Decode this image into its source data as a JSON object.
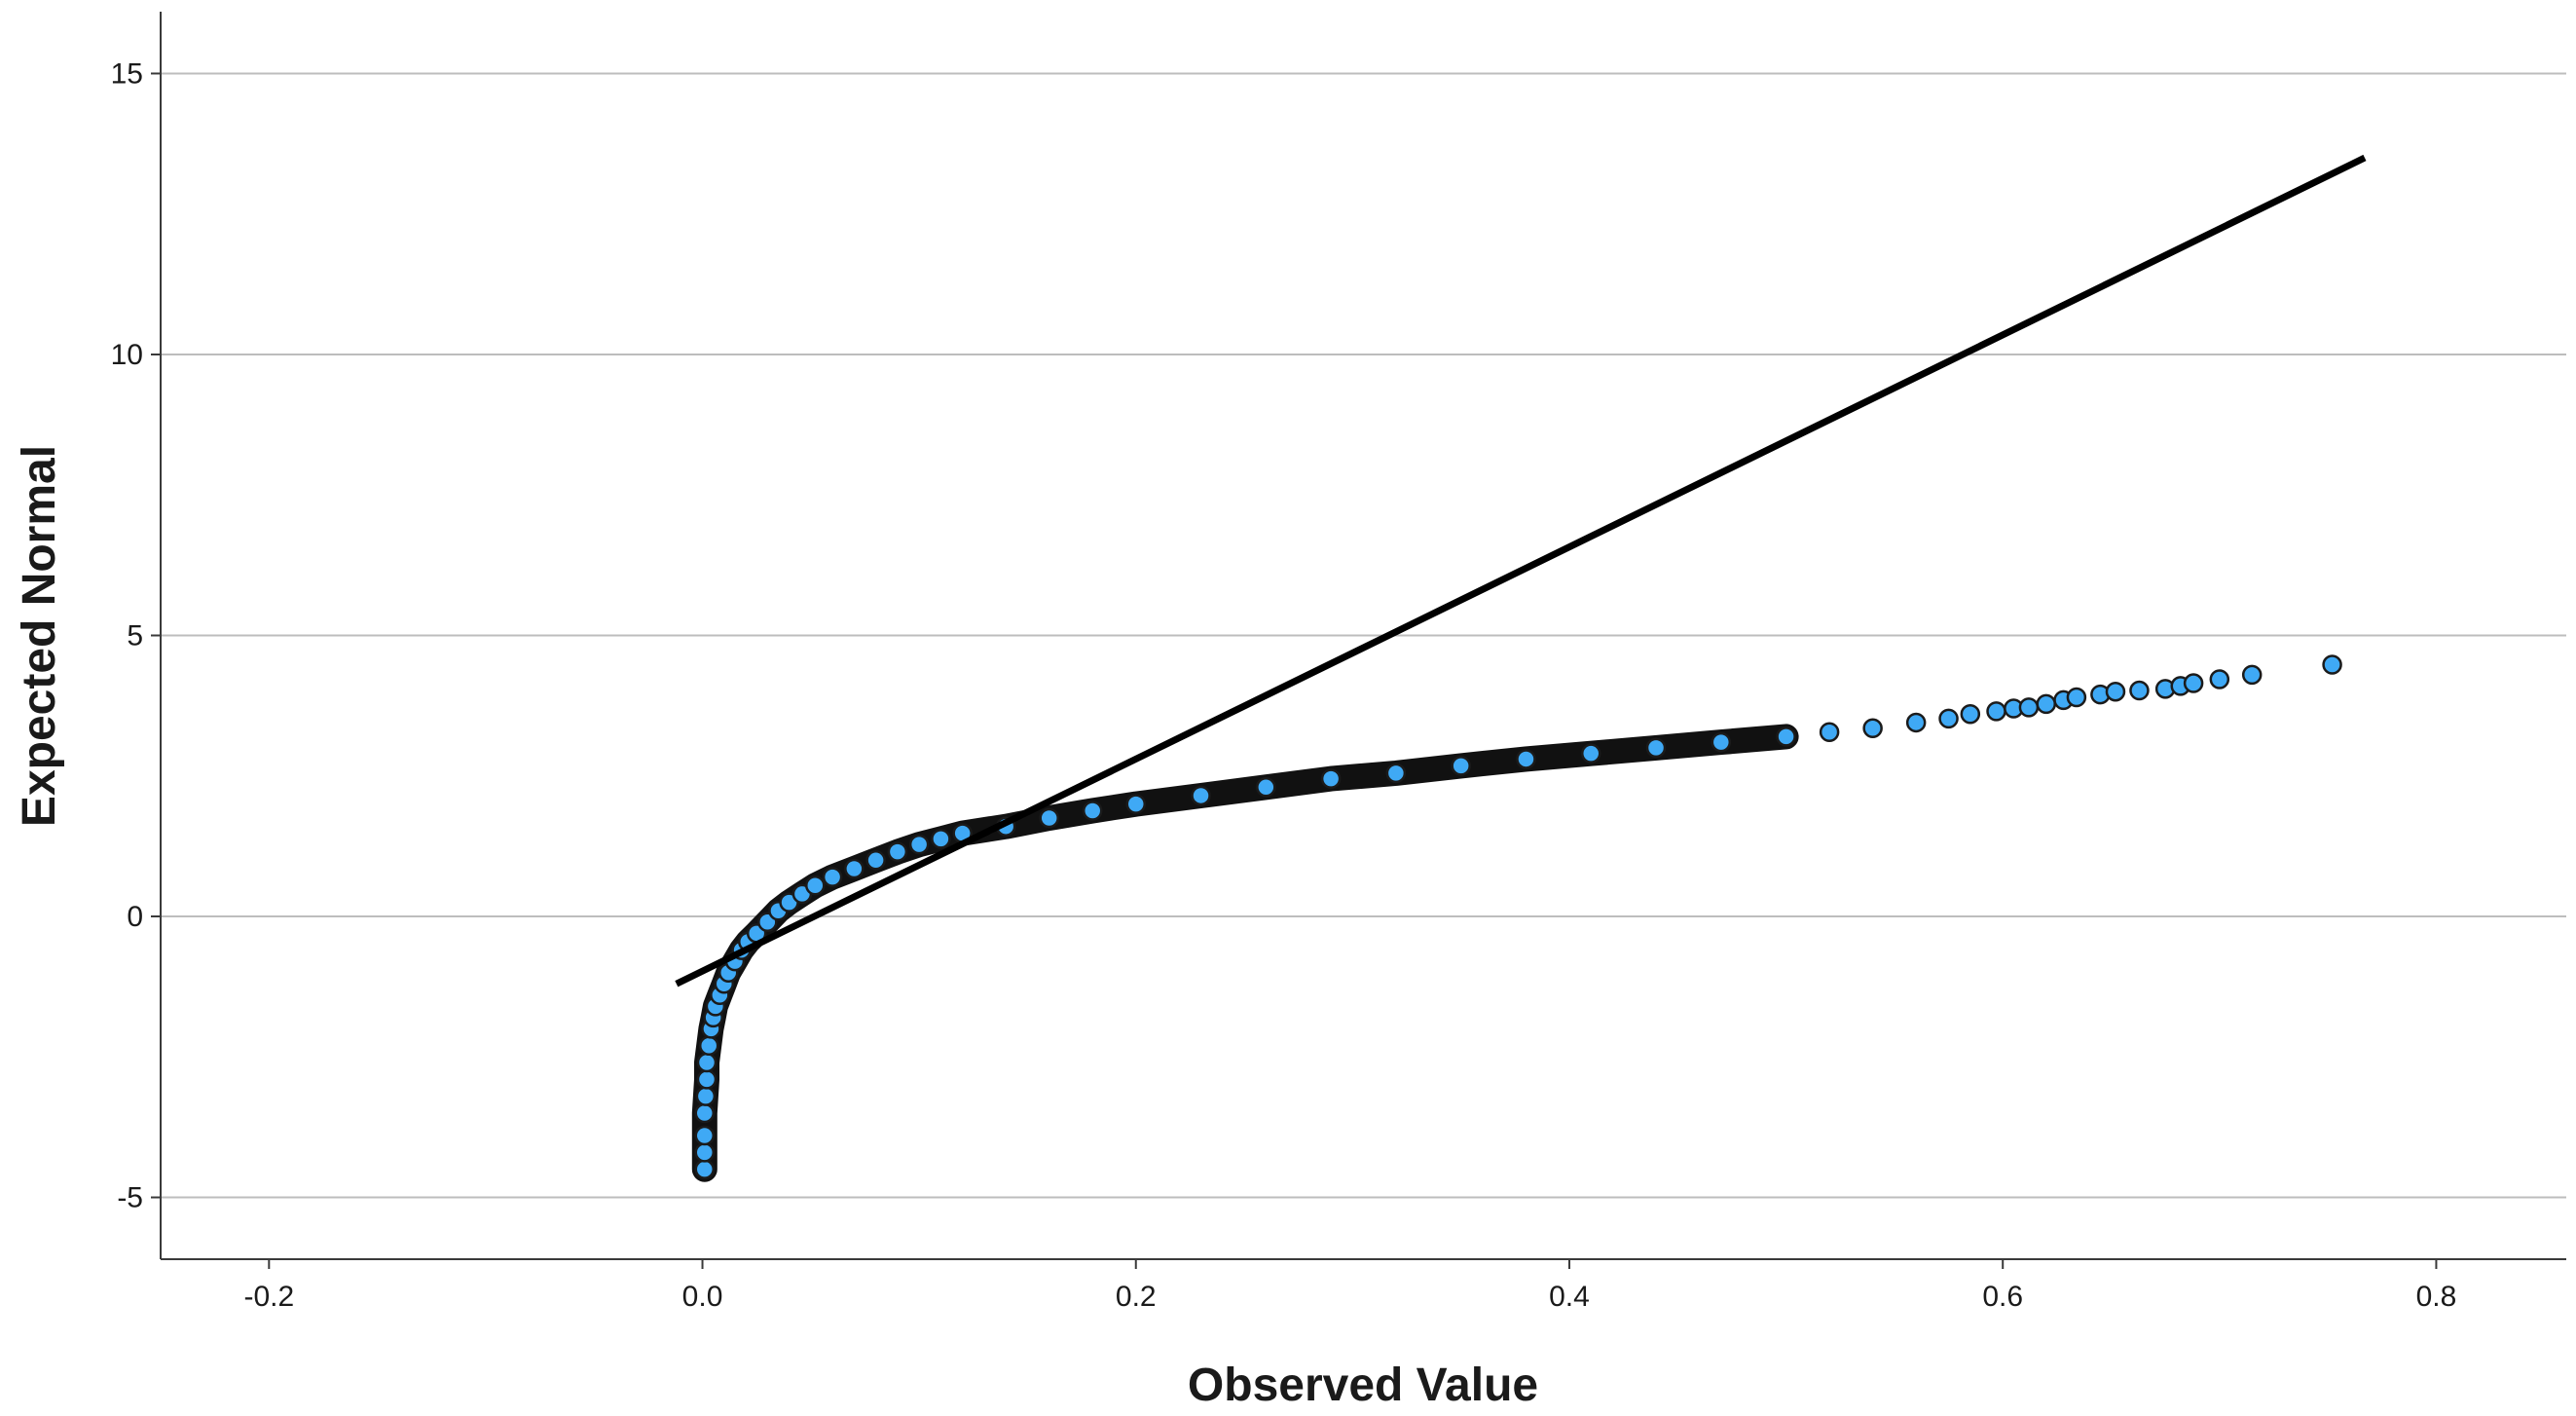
{
  "chart_data": {
    "type": "scatter",
    "title": "",
    "xlabel": "Observed Value",
    "ylabel": "Expected Normal",
    "xlim": [
      -0.25,
      0.86
    ],
    "ylim": [
      -6.1,
      16.1
    ],
    "x_ticks": [
      "-0.2",
      "0.0",
      "0.2",
      "0.4",
      "0.6",
      "0.8"
    ],
    "x_tick_values": [
      -0.2,
      0.0,
      0.2,
      0.4,
      0.6,
      0.8
    ],
    "y_ticks": [
      "15",
      "10",
      "5",
      "0",
      "-5"
    ],
    "y_tick_values": [
      15,
      10,
      5,
      0,
      -5
    ],
    "grid": "horizontal",
    "colors": {
      "points": "#3fa9f5",
      "point_edge": "#1b1b1b",
      "line": "#000000",
      "grid": "#bdbdbd",
      "axis": "#3a3a3a"
    },
    "reference_line": {
      "x": [
        -0.012,
        0.767
      ],
      "y": [
        -1.2,
        13.5
      ]
    },
    "points": {
      "x": [
        0.001,
        0.001,
        0.001,
        0.001,
        0.0015,
        0.002,
        0.002,
        0.003,
        0.004,
        0.005,
        0.006,
        0.008,
        0.01,
        0.012,
        0.015,
        0.018,
        0.021,
        0.025,
        0.03,
        0.035,
        0.04,
        0.046,
        0.052,
        0.06,
        0.07,
        0.08,
        0.09,
        0.1,
        0.11,
        0.12,
        0.14,
        0.16,
        0.18,
        0.2,
        0.23,
        0.26,
        0.29,
        0.32,
        0.35,
        0.38,
        0.41,
        0.44,
        0.47,
        0.5,
        0.52,
        0.54,
        0.56,
        0.575,
        0.585,
        0.597,
        0.605,
        0.612,
        0.62,
        0.628,
        0.634,
        0.645,
        0.652,
        0.663,
        0.675,
        0.682,
        0.688,
        0.7,
        0.715,
        0.752
      ],
      "y": [
        -4.5,
        -4.2,
        -3.9,
        -3.5,
        -3.2,
        -2.9,
        -2.6,
        -2.3,
        -2.0,
        -1.8,
        -1.6,
        -1.4,
        -1.2,
        -1.0,
        -0.8,
        -0.6,
        -0.45,
        -0.3,
        -0.1,
        0.1,
        0.25,
        0.4,
        0.55,
        0.7,
        0.85,
        1.0,
        1.15,
        1.28,
        1.38,
        1.48,
        1.6,
        1.75,
        1.88,
        2.0,
        2.15,
        2.3,
        2.45,
        2.55,
        2.68,
        2.8,
        2.9,
        3.0,
        3.1,
        3.2,
        3.28,
        3.35,
        3.45,
        3.52,
        3.6,
        3.65,
        3.7,
        3.72,
        3.78,
        3.85,
        3.9,
        3.95,
        4.0,
        4.02,
        4.05,
        4.1,
        4.15,
        4.22,
        4.3,
        4.48
      ]
    }
  }
}
